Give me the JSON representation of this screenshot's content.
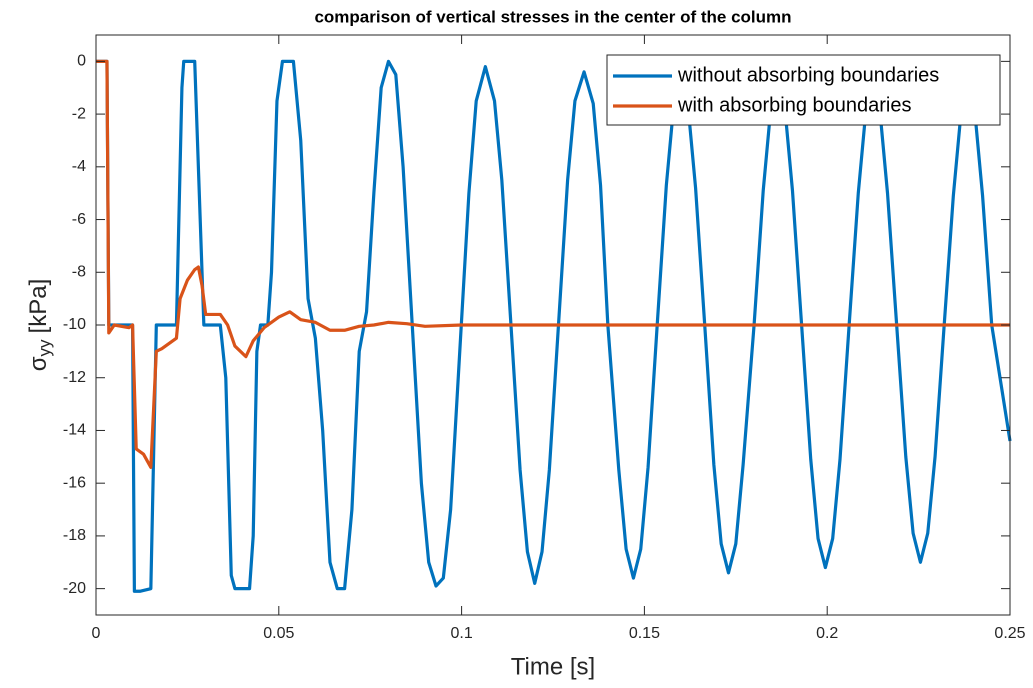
{
  "chart_data": {
    "type": "line",
    "title": "comparison of vertical stresses in the center of the column",
    "xlabel": "Time [s]",
    "ylabel": [
      "σ",
      "yy",
      "[kPa]"
    ],
    "xlim": [
      0,
      0.25
    ],
    "ylim": [
      -21,
      1
    ],
    "xticks": [
      0,
      0.05,
      0.1,
      0.15,
      0.2,
      0.25
    ],
    "yticks": [
      0,
      -2,
      -4,
      -6,
      -8,
      -10,
      -12,
      -14,
      -16,
      -18,
      -20
    ],
    "grid": false,
    "legend": "northeast",
    "series": [
      {
        "name": "without absorbing boundaries",
        "color": "#0072bd",
        "x": [
          0,
          0.003,
          0.0035,
          0.01,
          0.0105,
          0.012,
          0.015,
          0.0165,
          0.022,
          0.0235,
          0.024,
          0.027,
          0.0285,
          0.0295,
          0.034,
          0.0355,
          0.037,
          0.038,
          0.042,
          0.043,
          0.044,
          0.045,
          0.047,
          0.048,
          0.0495,
          0.051,
          0.054,
          0.056,
          0.058,
          0.06,
          0.062,
          0.064,
          0.066,
          0.068,
          0.07,
          0.072,
          0.074,
          0.076,
          0.078,
          0.08,
          0.082,
          0.084,
          0.0865,
          0.089,
          0.091,
          0.093,
          0.095,
          0.097,
          0.0995,
          0.102,
          0.104,
          0.1065,
          0.109,
          0.111,
          0.1135,
          0.116,
          0.118,
          0.12,
          0.122,
          0.124,
          0.1265,
          0.129,
          0.131,
          0.1335,
          0.136,
          0.138,
          0.14,
          0.143,
          0.145,
          0.147,
          0.149,
          0.151,
          0.1535,
          0.156,
          0.158,
          0.16,
          0.162,
          0.164,
          0.1665,
          0.169,
          0.171,
          0.173,
          0.175,
          0.177,
          0.18,
          0.1825,
          0.1845,
          0.1865,
          0.1885,
          0.1905,
          0.193,
          0.1955,
          0.1975,
          0.1995,
          0.2015,
          0.2035,
          0.206,
          0.2085,
          0.2105,
          0.2125,
          0.2145,
          0.2165,
          0.219,
          0.2215,
          0.2235,
          0.2255,
          0.2275,
          0.2295,
          0.232,
          0.2345,
          0.2365,
          0.2385,
          0.2405,
          0.2425,
          0.245,
          0.25
        ],
        "values": [
          0,
          0,
          -10,
          -10,
          -20.1,
          -20.1,
          -20,
          -10,
          -10,
          -1,
          0,
          0,
          -6,
          -10,
          -10,
          -12,
          -19.5,
          -20,
          -20,
          -18,
          -11,
          -10,
          -10,
          -8,
          -1.5,
          0,
          0,
          -3,
          -9,
          -10.5,
          -14,
          -19,
          -20,
          -20,
          -17,
          -11,
          -9.5,
          -5,
          -1,
          0,
          -0.5,
          -4,
          -10,
          -16,
          -19,
          -19.9,
          -19.6,
          -17,
          -11,
          -5,
          -1.5,
          -0.2,
          -1.5,
          -4.5,
          -10,
          -15.5,
          -18.6,
          -19.8,
          -18.6,
          -15.5,
          -10,
          -4.5,
          -1.5,
          -0.4,
          -1.6,
          -4.7,
          -10,
          -15.5,
          -18.5,
          -19.6,
          -18.5,
          -15.4,
          -10,
          -4.7,
          -1.7,
          -0.6,
          -1.8,
          -4.8,
          -10,
          -15.3,
          -18.3,
          -19.4,
          -18.3,
          -15.3,
          -10,
          -4.9,
          -1.9,
          -0.8,
          -1.9,
          -4.9,
          -10,
          -15.1,
          -18.1,
          -19.2,
          -18.1,
          -15.1,
          -10,
          -5,
          -2,
          -0.9,
          -2,
          -5,
          -10,
          -15,
          -17.9,
          -19,
          -17.9,
          -15,
          -10,
          -5.1,
          -2.1,
          -1,
          -2.1,
          -5.1,
          -10,
          -14.4
        ]
      },
      {
        "name": "with absorbing boundaries",
        "color": "#d95319",
        "x": [
          0,
          0.003,
          0.0035,
          0.005,
          0.009,
          0.01,
          0.011,
          0.013,
          0.015,
          0.0165,
          0.018,
          0.022,
          0.023,
          0.025,
          0.027,
          0.028,
          0.029,
          0.03,
          0.034,
          0.036,
          0.038,
          0.041,
          0.043,
          0.046,
          0.05,
          0.053,
          0.056,
          0.06,
          0.064,
          0.068,
          0.072,
          0.076,
          0.08,
          0.085,
          0.09,
          0.1,
          0.25
        ],
        "values": [
          0,
          0,
          -10.3,
          -10,
          -10.1,
          -10,
          -14.7,
          -14.9,
          -15.4,
          -11,
          -10.9,
          -10.5,
          -9,
          -8.3,
          -7.9,
          -7.8,
          -8.5,
          -9.6,
          -9.6,
          -10,
          -10.8,
          -11.2,
          -10.6,
          -10.1,
          -9.7,
          -9.5,
          -9.8,
          -9.9,
          -10.2,
          -10.2,
          -10.05,
          -10,
          -9.9,
          -9.95,
          -10.05,
          -10,
          -10
        ]
      }
    ]
  }
}
